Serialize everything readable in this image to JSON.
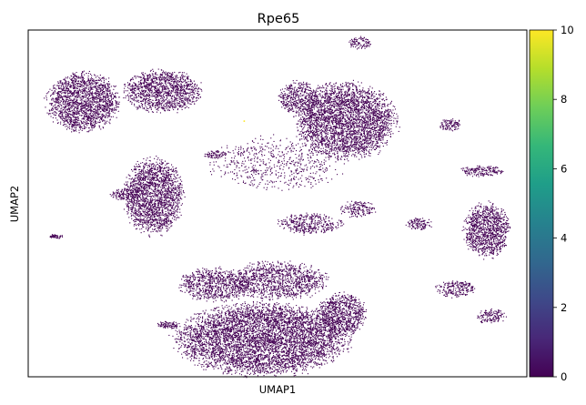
{
  "chart_data": {
    "type": "scatter",
    "title": "Rpe65",
    "xlabel": "UMAP1",
    "ylabel": "UMAP2",
    "x_ticks_shown": false,
    "y_ticks_shown": false,
    "grid": false,
    "legend": "none",
    "point_color": "#440154",
    "highlight_points": [
      {
        "x": -1.5,
        "y": 5.2,
        "value": 10,
        "color": "#fde725"
      }
    ],
    "clusters": [
      {
        "cx": -8.6,
        "cy": 6.1,
        "rx": 1.6,
        "ry": 1.4,
        "density": 1.0
      },
      {
        "cx": -5.1,
        "cy": 6.6,
        "rx": 1.7,
        "ry": 1.0,
        "density": 0.9
      },
      {
        "cx": 3.0,
        "cy": 5.2,
        "rx": 2.2,
        "ry": 1.8,
        "density": 1.0
      },
      {
        "cx": 0.9,
        "cy": 6.3,
        "rx": 0.9,
        "ry": 0.8,
        "density": 0.7
      },
      {
        "cx": 3.6,
        "cy": 8.9,
        "rx": 0.5,
        "ry": 0.3,
        "density": 0.5
      },
      {
        "cx": 0.0,
        "cy": 3.2,
        "rx": 3.0,
        "ry": 1.3,
        "density": 0.18
      },
      {
        "cx": -5.5,
        "cy": 1.6,
        "rx": 1.3,
        "ry": 1.8,
        "density": 1.0
      },
      {
        "cx": -6.7,
        "cy": 1.7,
        "rx": 0.7,
        "ry": 0.3,
        "density": 0.7
      },
      {
        "cx": -0.7,
        "cy": -5.2,
        "rx": 3.8,
        "ry": 1.7,
        "density": 1.0
      },
      {
        "cx": -2.8,
        "cy": -2.6,
        "rx": 1.6,
        "ry": 0.8,
        "density": 0.7
      },
      {
        "cx": 0.0,
        "cy": -2.4,
        "rx": 2.2,
        "ry": 0.9,
        "density": 0.7
      },
      {
        "cx": 2.8,
        "cy": -4.0,
        "rx": 1.1,
        "ry": 1.0,
        "density": 0.9
      },
      {
        "cx": -4.8,
        "cy": -4.5,
        "rx": 0.5,
        "ry": 0.2,
        "density": 0.6
      },
      {
        "cx": 9.2,
        "cy": 0.0,
        "rx": 1.0,
        "ry": 1.3,
        "density": 1.0
      },
      {
        "cx": 9.0,
        "cy": 2.8,
        "rx": 1.0,
        "ry": 0.25,
        "density": 0.7
      },
      {
        "cx": 7.6,
        "cy": 5.0,
        "rx": 0.5,
        "ry": 0.3,
        "density": 0.6
      },
      {
        "cx": 7.8,
        "cy": -2.8,
        "rx": 0.9,
        "ry": 0.4,
        "density": 0.6
      },
      {
        "cx": 9.4,
        "cy": -4.1,
        "rx": 0.7,
        "ry": 0.35,
        "density": 0.5
      },
      {
        "cx": 6.2,
        "cy": 0.3,
        "rx": 0.6,
        "ry": 0.3,
        "density": 0.5
      },
      {
        "cx": -9.8,
        "cy": -0.3,
        "rx": 0.3,
        "ry": 0.1,
        "density": 0.5
      },
      {
        "cx": 1.4,
        "cy": 0.3,
        "rx": 1.4,
        "ry": 0.5,
        "density": 0.6
      },
      {
        "cx": 3.5,
        "cy": 1.0,
        "rx": 0.8,
        "ry": 0.4,
        "density": 0.5
      },
      {
        "cx": -2.8,
        "cy": 3.6,
        "rx": 0.5,
        "ry": 0.2,
        "density": 0.4
      }
    ],
    "colorbar": {
      "colormap": "viridis",
      "range": [
        0,
        10
      ],
      "ticks": [
        "0",
        "2",
        "4",
        "6",
        "8",
        "10"
      ],
      "colors": [
        "#440154",
        "#482878",
        "#3e4989",
        "#31688e",
        "#26828e",
        "#1f9e89",
        "#35b779",
        "#6ece58",
        "#b5de2b",
        "#fde725"
      ]
    }
  }
}
